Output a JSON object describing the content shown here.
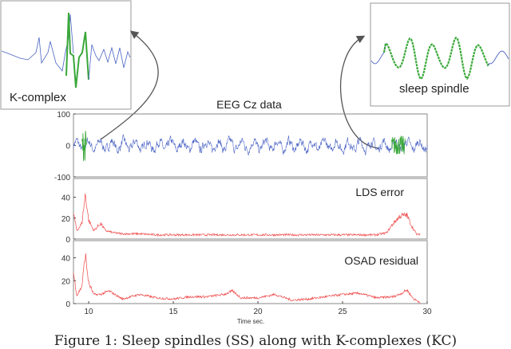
{
  "chart_data": [
    {
      "type": "line",
      "title": "EEG Cz data",
      "ylim": [
        -100,
        100
      ],
      "yticks": [
        "100",
        "0",
        "-100"
      ],
      "xlim": [
        9.1,
        30
      ],
      "series": [
        {
          "name": "EEG",
          "color": "#4a63c4",
          "amplitude": 15
        },
        {
          "name": "K-complex",
          "color": "#3aa83a",
          "x_range": [
            9.6,
            9.9
          ],
          "amplitude": 50
        },
        {
          "name": "sleep spindle",
          "color": "#3aa83a",
          "x_range": [
            27.9,
            28.7
          ],
          "amplitude": 30
        }
      ]
    },
    {
      "type": "line",
      "title": "LDS error",
      "ylim": [
        0,
        58
      ],
      "yticks": [
        "40",
        "20",
        "0"
      ],
      "xlim": [
        9.1,
        30
      ],
      "series": [
        {
          "name": "LDS error",
          "color": "#f04848",
          "x": [
            9.1,
            9.3,
            9.6,
            9.8,
            10.0,
            10.3,
            10.7,
            11.0,
            11.5,
            12,
            13,
            14,
            15,
            16,
            17,
            18,
            19,
            20,
            21,
            22,
            23,
            24,
            25,
            26,
            27,
            27.6,
            28.0,
            28.4,
            28.8,
            29.1,
            29.4,
            29.6
          ],
          "y": [
            25,
            8,
            15,
            43,
            18,
            8,
            15,
            8,
            6,
            5,
            5,
            4,
            4,
            4,
            4,
            4,
            4,
            4,
            4,
            4,
            4,
            4,
            4,
            4,
            4,
            6,
            15,
            22,
            23,
            12,
            4,
            5
          ]
        }
      ]
    },
    {
      "type": "line",
      "title": "OSAD residual",
      "ylim": [
        0,
        55
      ],
      "yticks": [
        "40",
        "20",
        "0"
      ],
      "xlabel": "Time sec.",
      "xticks": [
        "10",
        "15",
        "20",
        "25",
        "30"
      ],
      "xlim": [
        9.1,
        30
      ],
      "series": [
        {
          "name": "OSAD residual",
          "color": "#f04848",
          "x": [
            9.1,
            9.3,
            9.6,
            9.8,
            10.0,
            10.3,
            10.7,
            11.2,
            12,
            13,
            14,
            15,
            16,
            17,
            18,
            18.5,
            19,
            20,
            21,
            22,
            23,
            24,
            25,
            26,
            27,
            28,
            28.5,
            28.8,
            29.2,
            29.6
          ],
          "y": [
            27,
            7,
            15,
            43,
            18,
            8,
            8,
            11,
            4,
            8,
            5,
            4,
            6,
            6,
            8,
            11,
            5,
            5,
            8,
            3,
            4,
            6,
            8,
            9,
            5,
            6,
            9,
            12,
            4,
            1
          ]
        }
      ]
    }
  ],
  "insets": {
    "left_label": "K-complex",
    "right_label": "sleep spindle"
  },
  "caption": "Figure 1: Sleep spindles (SS) along with K-complexes (KC)"
}
